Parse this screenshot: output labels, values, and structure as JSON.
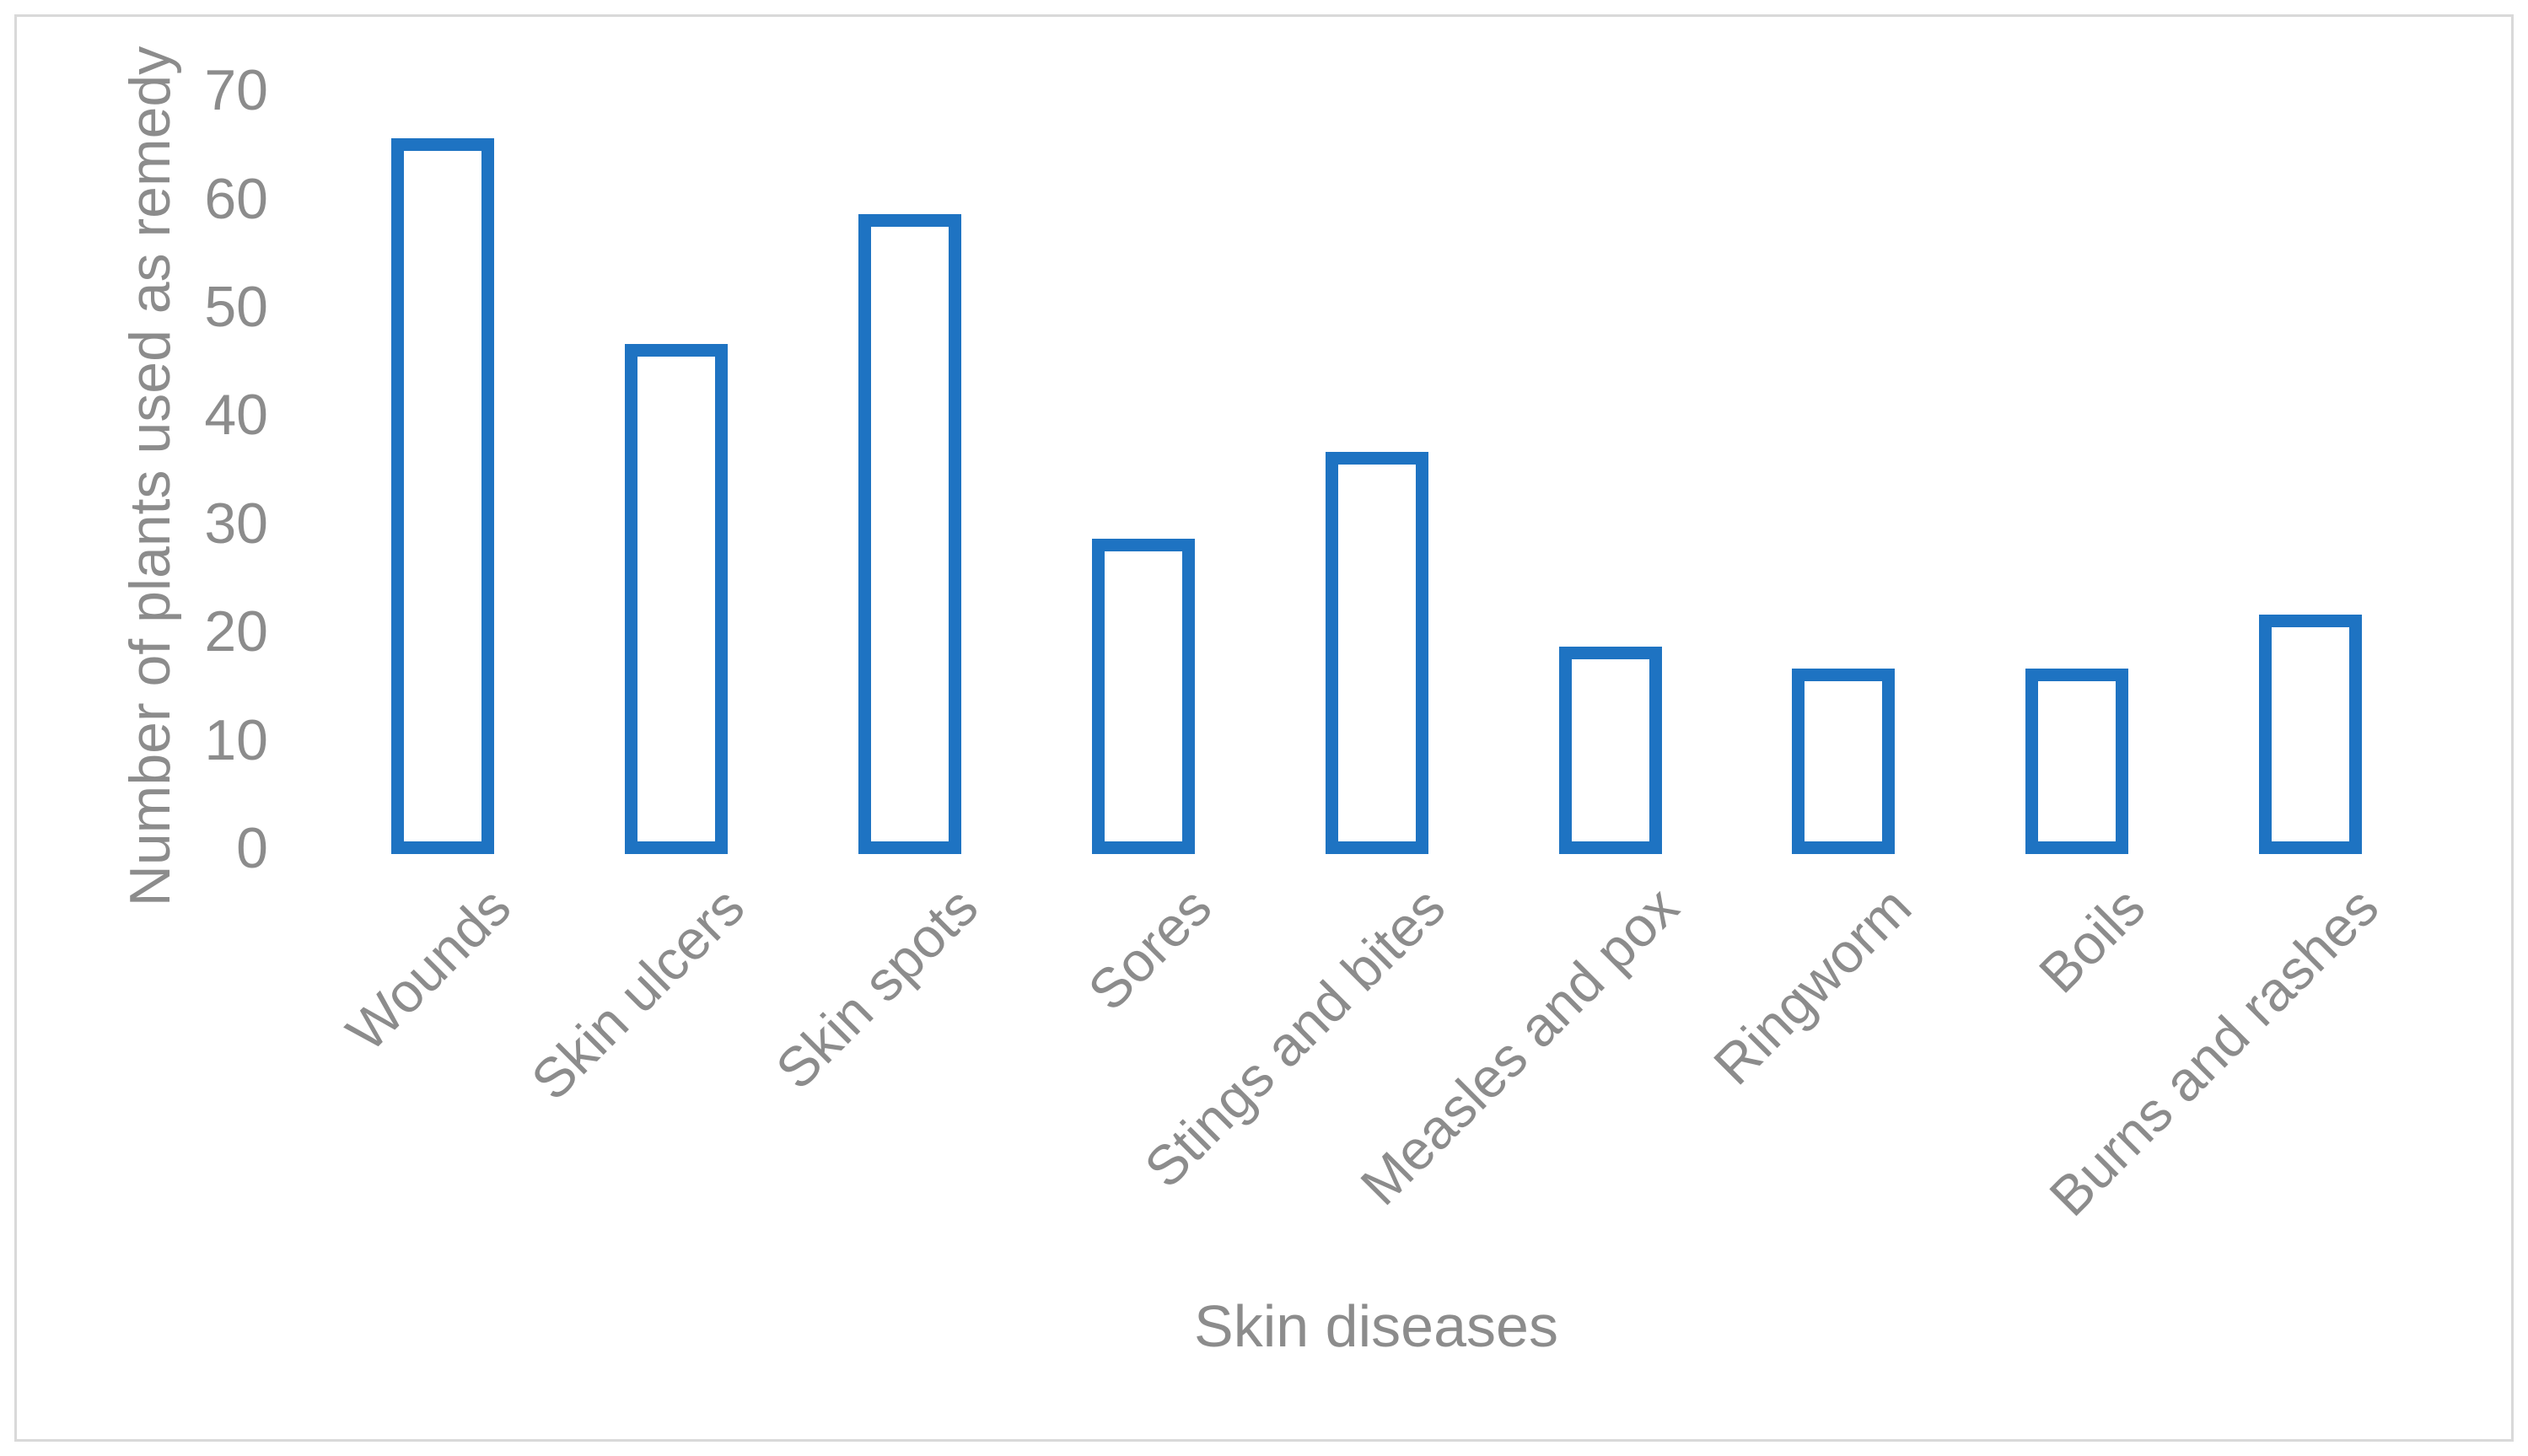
{
  "figure": {
    "background": "#FFFFFF",
    "frame_color": "#D9D9D9"
  },
  "chart_data": {
    "type": "bar",
    "title": "",
    "categories": [
      "Wounds",
      "Skin ulcers",
      "Skin spots",
      "Sores",
      "Stings and bites",
      "Measles and pox",
      "Ringworm",
      "Boils",
      "Burns and rashes"
    ],
    "values": [
      65,
      46,
      58,
      28,
      36,
      18,
      16,
      16,
      21
    ],
    "xlabel": "Skin diseases",
    "ylabel": "Number of plants used as remedy",
    "ylim": [
      0,
      70
    ],
    "ytick_step": 10,
    "ytick_labels": [
      "0",
      "10",
      "20",
      "30",
      "40",
      "50",
      "60",
      "70"
    ],
    "grid": false,
    "legend": false,
    "axis_line_visible": false,
    "bar_style": {
      "fill": "#FFFFFF",
      "border_color": "#1E73C2",
      "border_px": 15
    },
    "text_color": "#8C8C8C"
  }
}
